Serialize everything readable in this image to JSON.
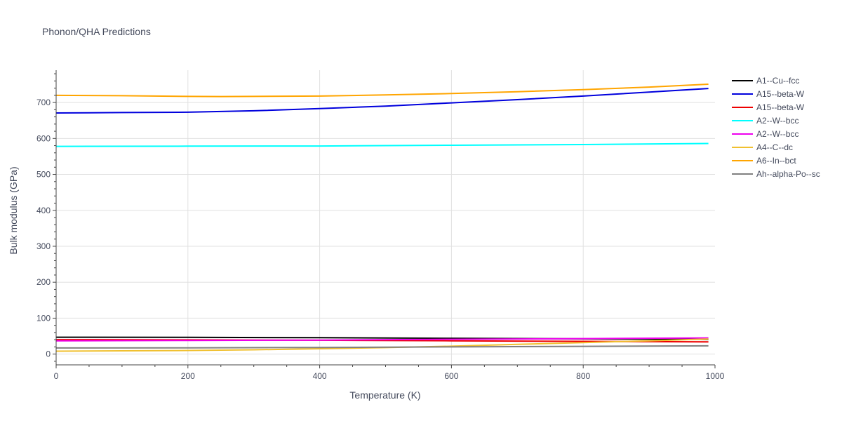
{
  "chart_data": {
    "type": "line",
    "title": "Phonon/QHA Predictions",
    "xlabel": "Temperature (K)",
    "ylabel": "Bulk modulus (GPa)",
    "xlim": [
      0,
      1000
    ],
    "ylim": [
      -30,
      790
    ],
    "xticks": [
      0,
      200,
      400,
      600,
      800,
      1000
    ],
    "yticks": [
      0,
      100,
      200,
      300,
      400,
      500,
      600,
      700
    ],
    "grid": true,
    "legend_position": "right",
    "series": [
      {
        "name": "A1--Cu--fcc",
        "color": "#000000",
        "x": [
          0,
          200,
          400,
          600,
          800,
          990
        ],
        "y": [
          47,
          46.5,
          45.5,
          44,
          42.5,
          41
        ]
      },
      {
        "name": "A15--beta-W",
        "color": "#0000dd",
        "x": [
          0,
          100,
          200,
          300,
          400,
          500,
          600,
          700,
          800,
          900,
          990
        ],
        "y": [
          671,
          672,
          673,
          677,
          683,
          690,
          699,
          708,
          718,
          729,
          739
        ]
      },
      {
        "name": "A15--beta-W",
        "color": "#ee0000",
        "x": [
          0,
          200,
          400,
          600,
          800,
          990
        ],
        "y": [
          40,
          39.5,
          38.5,
          37,
          35.5,
          34
        ]
      },
      {
        "name": "A2--W--bcc",
        "color": "#00ffff",
        "x": [
          0,
          200,
          400,
          600,
          800,
          990
        ],
        "y": [
          578,
          578.5,
          579,
          581,
          583,
          586
        ]
      },
      {
        "name": "A2--W--bcc",
        "color": "#ee00ee",
        "x": [
          0,
          200,
          400,
          600,
          800,
          990
        ],
        "y": [
          37,
          38,
          39,
          41,
          43,
          45
        ]
      },
      {
        "name": "A4--C--dc",
        "color": "#f0c030",
        "x": [
          0,
          100,
          200,
          300,
          400,
          500,
          600,
          700,
          800,
          900,
          990
        ],
        "y": [
          8,
          9,
          10,
          12,
          15,
          18,
          22,
          27,
          32,
          37,
          42
        ]
      },
      {
        "name": "A6--In--bct",
        "color": "#ffa500",
        "x": [
          0,
          100,
          200,
          250,
          300,
          400,
          500,
          600,
          700,
          800,
          900,
          990
        ],
        "y": [
          720,
          719,
          717,
          716.5,
          717,
          718,
          721,
          725,
          730,
          736,
          743,
          751
        ]
      },
      {
        "name": "Ah--alpha-Po--sc",
        "color": "#808080",
        "x": [
          0,
          200,
          400,
          600,
          800,
          990
        ],
        "y": [
          17,
          17.5,
          18.5,
          20,
          21.5,
          23
        ]
      }
    ]
  }
}
